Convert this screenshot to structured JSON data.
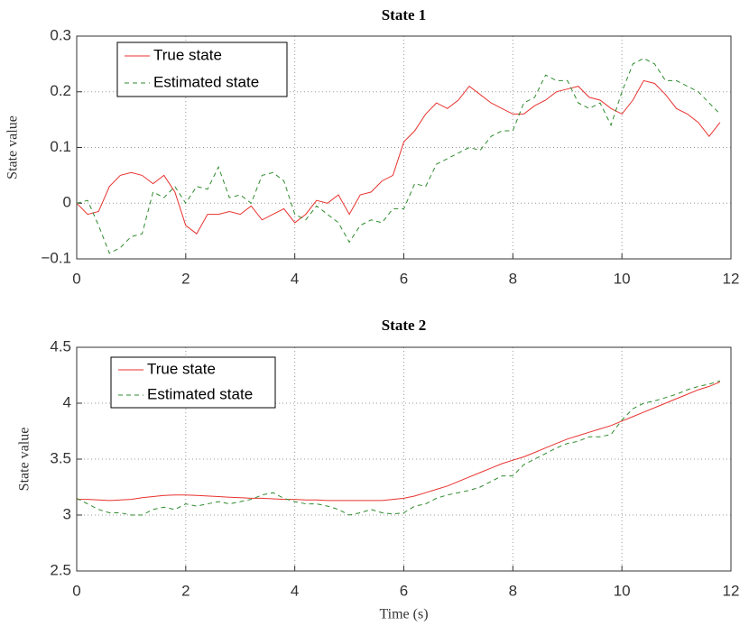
{
  "chart_data": [
    {
      "type": "line",
      "title": "State 1",
      "ylabel": "State value",
      "x": [
        0,
        0.2,
        0.4,
        0.6,
        0.8,
        1,
        1.2,
        1.4,
        1.6,
        1.8,
        2,
        2.2,
        2.4,
        2.6,
        2.8,
        3,
        3.2,
        3.4,
        3.6,
        3.8,
        4,
        4.2,
        4.4,
        4.6,
        4.8,
        5,
        5.2,
        5.4,
        5.6,
        5.8,
        6,
        6.2,
        6.4,
        6.6,
        6.8,
        7,
        7.2,
        7.4,
        7.6,
        7.8,
        8,
        8.2,
        8.4,
        8.6,
        8.8,
        9,
        9.2,
        9.4,
        9.6,
        9.8,
        10,
        10.2,
        10.4,
        10.6,
        10.8,
        11,
        11.2,
        11.4,
        11.6,
        11.8
      ],
      "series": [
        {
          "name": "True state",
          "color": "#e8322e",
          "dash": false,
          "values": [
            0,
            -0.02,
            -0.015,
            0.03,
            0.05,
            0.055,
            0.05,
            0.035,
            0.05,
            0.02,
            -0.04,
            -0.055,
            -0.02,
            -0.02,
            -0.015,
            -0.02,
            -0.005,
            -0.03,
            -0.02,
            -0.01,
            -0.035,
            -0.02,
            0.005,
            0,
            0.015,
            -0.02,
            0.015,
            0.02,
            0.04,
            0.05,
            0.11,
            0.13,
            0.16,
            0.18,
            0.17,
            0.185,
            0.21,
            0.195,
            0.18,
            0.17,
            0.16,
            0.16,
            0.175,
            0.185,
            0.2,
            0.205,
            0.21,
            0.19,
            0.185,
            0.17,
            0.16,
            0.185,
            0.22,
            0.215,
            0.195,
            0.17,
            0.16,
            0.145,
            0.12,
            0.145
          ]
        },
        {
          "name": "Estimated state",
          "color": "#2e8b2e",
          "dash": true,
          "values": [
            0,
            0.005,
            -0.04,
            -0.09,
            -0.08,
            -0.06,
            -0.055,
            0.02,
            0.01,
            0.03,
            0,
            0.03,
            0.025,
            0.065,
            0.01,
            0.015,
            0,
            0.05,
            0.055,
            0.04,
            -0.02,
            -0.03,
            -0.005,
            -0.02,
            -0.035,
            -0.07,
            -0.04,
            -0.03,
            -0.035,
            -0.01,
            -0.01,
            0.035,
            0.03,
            0.07,
            0.08,
            0.09,
            0.1,
            0.095,
            0.12,
            0.13,
            0.13,
            0.18,
            0.19,
            0.23,
            0.22,
            0.22,
            0.18,
            0.17,
            0.18,
            0.14,
            0.2,
            0.25,
            0.26,
            0.25,
            0.22,
            0.22,
            0.21,
            0.2,
            0.18,
            0.16
          ]
        }
      ],
      "xlim": [
        0,
        12
      ],
      "xticks": [
        0,
        2,
        4,
        6,
        8,
        10,
        12
      ],
      "ylim": [
        -0.1,
        0.3
      ],
      "yticks": [
        {
          "value": -0.1,
          "label": "−0.1"
        },
        0,
        0.1,
        0.2,
        0.3
      ],
      "grid": true,
      "legend": "upper left"
    },
    {
      "type": "line",
      "title": "State 2",
      "ylabel": "State value",
      "xlabel": "Time (s)",
      "x": [
        0,
        0.2,
        0.4,
        0.6,
        0.8,
        1,
        1.2,
        1.4,
        1.6,
        1.8,
        2,
        2.2,
        2.4,
        2.6,
        2.8,
        3,
        3.2,
        3.4,
        3.6,
        3.8,
        4,
        4.2,
        4.4,
        4.6,
        4.8,
        5,
        5.2,
        5.4,
        5.6,
        5.8,
        6,
        6.2,
        6.4,
        6.6,
        6.8,
        7,
        7.2,
        7.4,
        7.6,
        7.8,
        8,
        8.2,
        8.4,
        8.6,
        8.8,
        9,
        9.2,
        9.4,
        9.6,
        9.8,
        10,
        10.2,
        10.4,
        10.6,
        10.8,
        11,
        11.2,
        11.4,
        11.6,
        11.8
      ],
      "series": [
        {
          "name": "True state",
          "color": "#e8322e",
          "dash": false,
          "values": [
            3.14,
            3.14,
            3.135,
            3.13,
            3.135,
            3.14,
            3.155,
            3.165,
            3.175,
            3.18,
            3.18,
            3.175,
            3.17,
            3.165,
            3.16,
            3.155,
            3.15,
            3.15,
            3.145,
            3.14,
            3.14,
            3.135,
            3.135,
            3.13,
            3.13,
            3.13,
            3.13,
            3.13,
            3.13,
            3.14,
            3.15,
            3.17,
            3.2,
            3.23,
            3.26,
            3.3,
            3.34,
            3.38,
            3.42,
            3.46,
            3.49,
            3.52,
            3.56,
            3.6,
            3.64,
            3.68,
            3.71,
            3.74,
            3.77,
            3.8,
            3.84,
            3.88,
            3.92,
            3.96,
            4,
            4.04,
            4.08,
            4.12,
            4.15,
            4.19
          ]
        },
        {
          "name": "Estimated state",
          "color": "#2e8b2e",
          "dash": true,
          "values": [
            3.15,
            3.1,
            3.05,
            3.02,
            3.02,
            3,
            3,
            3.05,
            3.07,
            3.05,
            3.1,
            3.08,
            3.1,
            3.12,
            3.1,
            3.12,
            3.14,
            3.18,
            3.2,
            3.15,
            3.12,
            3.1,
            3.1,
            3.08,
            3.05,
            3,
            3.02,
            3.05,
            3.02,
            3.01,
            3.02,
            3.08,
            3.1,
            3.15,
            3.18,
            3.2,
            3.22,
            3.25,
            3.3,
            3.35,
            3.35,
            3.45,
            3.5,
            3.55,
            3.6,
            3.64,
            3.66,
            3.7,
            3.7,
            3.72,
            3.85,
            3.95,
            4,
            4.02,
            4.05,
            4.08,
            4.12,
            4.15,
            4.17,
            4.2
          ]
        }
      ],
      "xlim": [
        0,
        12
      ],
      "xticks": [
        0,
        2,
        4,
        6,
        8,
        10,
        12
      ],
      "ylim": [
        2.5,
        4.5
      ],
      "yticks": [
        2.5,
        3,
        3.5,
        4,
        4.5
      ],
      "grid": true,
      "legend": "upper left"
    }
  ]
}
